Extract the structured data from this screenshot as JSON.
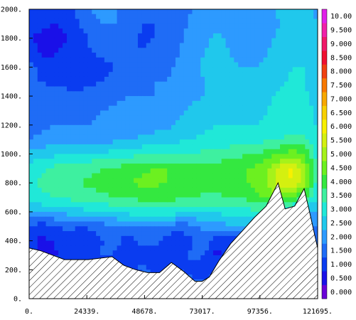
{
  "chart_data": {
    "type": "heatmap",
    "title": "",
    "xlabel": "",
    "ylabel": "",
    "xlim": [
      0,
      121695
    ],
    "ylim": [
      0,
      2000
    ],
    "x_tick_labels": [
      "0.",
      "24339.",
      "48678.",
      "73017.",
      "97356.",
      "121695."
    ],
    "x_ticks": [
      0,
      24339,
      48678,
      73017,
      97356,
      121695
    ],
    "y_tick_labels": [
      "0.",
      "200.",
      "400.",
      "600.",
      "800.",
      "1000.",
      "1200.",
      "1400.",
      "1600.",
      "1800.",
      "2000."
    ],
    "y_ticks": [
      0,
      200,
      400,
      600,
      800,
      1000,
      1200,
      1400,
      1600,
      1800,
      2000
    ],
    "colorbar": {
      "labels": [
        "0.000",
        "0.500",
        "1.000",
        "1.500",
        "2.000",
        "2.500",
        "3.000",
        "3.500",
        "4.000",
        "4.500",
        "5.000",
        "5.500",
        "6.000",
        "6.500",
        "7.000",
        "7.500",
        "8.000",
        "8.500",
        "9.000",
        "9.500",
        "10.00"
      ],
      "colors": [
        "#6a00d8",
        "#1a10e8",
        "#0a3cf0",
        "#1f6cf6",
        "#2d9aff",
        "#20c8ec",
        "#20e8d8",
        "#3ef0a0",
        "#34e840",
        "#6cf020",
        "#a6f21a",
        "#d4f010",
        "#f8f000",
        "#f8d000",
        "#f8a800",
        "#f87800",
        "#f04010",
        "#f01030",
        "#f01868",
        "#f020a8",
        "#e020e8"
      ]
    },
    "terrain": {
      "x": [
        0,
        5000,
        15000,
        25000,
        35000,
        40000,
        45000,
        50000,
        55000,
        60000,
        65000,
        70000,
        73000,
        76000,
        80000,
        85000,
        90000,
        95000,
        100000,
        105000,
        108000,
        112000,
        116000,
        118000,
        121695
      ],
      "y": [
        350,
        330,
        270,
        270,
        290,
        230,
        200,
        180,
        180,
        250,
        190,
        120,
        120,
        150,
        260,
        380,
        470,
        560,
        640,
        800,
        620,
        640,
        760,
        620,
        350
      ]
    },
    "field_note_rows": [],
    "field": {
      "rows": 21,
      "cols": 24,
      "values": [
        [
          1.4,
          1.4,
          1.3,
          1.3,
          1.6,
          2.0,
          2.2,
          2.0,
          1.8,
          1.6,
          1.5,
          1.5,
          1.7,
          2.0,
          2.3,
          2.5,
          2.5,
          2.3,
          2.2,
          2.3,
          2.6,
          2.8,
          2.6,
          2.4
        ],
        [
          1.3,
          1.2,
          0.9,
          1.2,
          1.5,
          1.8,
          2.0,
          2.0,
          1.8,
          1.5,
          1.5,
          1.6,
          1.8,
          2.1,
          2.3,
          2.4,
          2.4,
          2.3,
          2.2,
          2.3,
          2.5,
          2.8,
          2.8,
          2.5
        ],
        [
          1.0,
          0.8,
          0.8,
          1.0,
          1.3,
          1.6,
          1.8,
          1.9,
          1.7,
          1.4,
          1.5,
          1.7,
          1.9,
          2.2,
          2.4,
          2.6,
          2.4,
          2.2,
          2.2,
          2.4,
          2.6,
          2.9,
          2.9,
          2.6
        ],
        [
          1.4,
          0.9,
          0.9,
          1.2,
          1.4,
          1.5,
          1.6,
          1.7,
          1.6,
          1.5,
          1.7,
          1.8,
          2.0,
          2.3,
          2.5,
          2.7,
          2.5,
          2.3,
          2.3,
          2.5,
          2.7,
          2.9,
          2.9,
          2.6
        ],
        [
          1.7,
          1.4,
          1.4,
          1.5,
          1.5,
          1.4,
          1.4,
          1.5,
          1.6,
          1.7,
          1.8,
          1.9,
          2.1,
          2.3,
          2.6,
          2.7,
          2.6,
          2.5,
          2.5,
          2.6,
          2.8,
          3.0,
          3.0,
          2.6
        ],
        [
          1.5,
          1.5,
          1.4,
          1.3,
          1.3,
          1.4,
          1.5,
          1.6,
          1.8,
          1.9,
          2.0,
          2.0,
          2.1,
          2.3,
          2.5,
          2.6,
          2.6,
          2.5,
          2.6,
          2.7,
          2.9,
          3.1,
          3.0,
          2.6
        ],
        [
          1.6,
          1.6,
          1.7,
          1.7,
          1.6,
          1.7,
          1.8,
          1.9,
          2.0,
          2.0,
          2.0,
          2.0,
          2.2,
          2.4,
          2.5,
          2.6,
          2.5,
          2.6,
          2.7,
          2.9,
          3.1,
          3.1,
          3.1,
          2.7
        ],
        [
          1.7,
          1.8,
          1.9,
          1.9,
          1.8,
          1.9,
          2.0,
          2.1,
          2.1,
          2.1,
          2.1,
          2.2,
          2.4,
          2.6,
          2.7,
          2.8,
          2.8,
          2.8,
          2.8,
          3.0,
          3.1,
          3.2,
          3.3,
          2.8
        ],
        [
          1.8,
          1.9,
          2.0,
          2.0,
          2.0,
          2.0,
          2.1,
          2.2,
          2.2,
          2.2,
          2.3,
          2.4,
          2.6,
          2.8,
          2.9,
          3.0,
          3.0,
          3.0,
          3.0,
          3.1,
          3.2,
          3.3,
          3.4,
          2.9
        ],
        [
          2.0,
          2.1,
          2.2,
          2.3,
          2.3,
          2.3,
          2.3,
          2.4,
          2.5,
          2.6,
          2.7,
          2.8,
          2.9,
          3.0,
          3.1,
          3.2,
          3.2,
          3.2,
          3.3,
          3.4,
          3.5,
          3.6,
          3.6,
          3.0
        ],
        [
          2.6,
          2.8,
          2.9,
          3.0,
          3.0,
          3.1,
          3.1,
          3.2,
          3.3,
          3.4,
          3.4,
          3.5,
          3.5,
          3.5,
          3.6,
          3.7,
          3.8,
          3.9,
          4.0,
          4.2,
          4.5,
          4.8,
          4.4,
          3.2
        ],
        [
          3.2,
          3.4,
          3.6,
          3.7,
          3.8,
          3.9,
          4.0,
          4.1,
          4.2,
          4.4,
          4.5,
          4.5,
          4.4,
          4.3,
          4.2,
          4.2,
          4.3,
          4.4,
          4.6,
          4.9,
          5.6,
          6.2,
          5.0,
          3.4
        ],
        [
          3.4,
          3.6,
          3.8,
          3.9,
          4.0,
          4.1,
          4.2,
          4.3,
          4.5,
          4.6,
          4.6,
          4.5,
          4.4,
          4.3,
          4.2,
          4.2,
          4.3,
          4.4,
          4.6,
          5.0,
          5.8,
          6.0,
          5.2,
          3.2
        ],
        [
          3.2,
          3.4,
          3.5,
          3.6,
          3.7,
          3.8,
          3.9,
          4.0,
          4.1,
          4.2,
          4.2,
          4.2,
          4.1,
          4.0,
          3.9,
          3.9,
          4.0,
          4.1,
          4.3,
          4.6,
          4.8,
          4.4,
          4.0,
          3.0
        ],
        [
          2.6,
          2.6,
          2.6,
          2.7,
          2.8,
          2.9,
          3.0,
          3.1,
          3.2,
          3.2,
          3.3,
          3.3,
          3.2,
          3.1,
          3.1,
          3.1,
          3.2,
          3.3,
          3.4,
          3.4,
          3.0,
          2.6,
          2.5,
          2.4
        ],
        [
          1.4,
          1.2,
          1.4,
          1.6,
          1.5,
          1.6,
          1.8,
          1.9,
          2.0,
          2.0,
          2.0,
          1.9,
          1.7,
          1.8,
          2.1,
          2.3,
          2.4,
          2.4,
          2.3,
          2.2,
          2.0,
          2.0,
          2.0,
          2.0
        ],
        [
          1.1,
          0.9,
          1.0,
          1.3,
          1.2,
          1.2,
          1.5,
          1.6,
          1.2,
          1.6,
          1.8,
          1.3,
          1.0,
          1.5,
          1.8,
          1.2,
          0.9,
          1.4,
          1.8,
          1.9,
          1.9,
          1.9,
          1.9,
          1.9
        ],
        [
          1.2,
          0.9,
          0.9,
          1.4,
          1.1,
          1.3,
          1.6,
          1.4,
          1.3,
          1.4,
          1.0,
          1.4,
          1.2,
          1.6,
          1.5,
          0.8,
          1.6,
          1.6,
          1.8,
          1.8,
          1.8,
          1.8,
          1.8,
          1.8
        ],
        [
          0.3,
          0.9,
          1.1,
          1.2,
          1.1,
          0.3,
          1.0,
          1.4,
          1.2,
          1.6,
          1.5,
          1.4,
          1.5,
          1.4,
          1.3,
          1.5,
          1.6,
          1.7,
          1.7,
          1.7,
          1.7,
          1.7,
          1.7,
          1.7
        ],
        [
          1.3,
          1.0,
          1.1,
          1.3,
          1.4,
          1.1,
          1.4,
          1.5,
          1.4,
          1.3,
          1.4,
          1.5,
          1.6,
          1.6,
          1.6,
          1.6,
          1.6,
          1.6,
          1.6,
          1.6,
          1.6,
          1.6,
          1.6,
          1.6
        ],
        [
          1.0,
          1.1,
          1.2,
          1.3,
          1.3,
          1.2,
          1.3,
          1.4,
          1.4,
          1.4,
          1.5,
          1.5,
          1.5,
          1.5,
          1.5,
          1.5,
          1.5,
          1.5,
          1.5,
          1.5,
          1.5,
          1.5,
          1.5,
          1.5
        ]
      ]
    }
  }
}
